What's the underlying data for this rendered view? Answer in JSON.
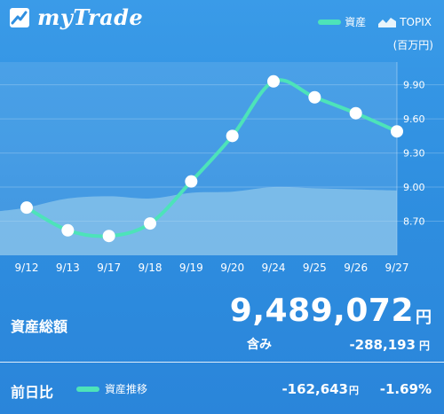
{
  "app": {
    "name": "myTrade"
  },
  "legend": {
    "series_label": "資産",
    "benchmark_label": "TOPIX"
  },
  "chart": {
    "unit_label": "(百万円)"
  },
  "colors": {
    "series_line": "#4de3b9",
    "benchmark_fill": "#a7d7ee",
    "background": "#2f8fe0"
  },
  "chart_data": {
    "type": "line",
    "categories": [
      "9/12",
      "9/13",
      "9/17",
      "9/18",
      "9/19",
      "9/20",
      "9/24",
      "9/25",
      "9/26",
      "9/27"
    ],
    "series": [
      {
        "name": "資産",
        "values": [
          8.82,
          8.62,
          8.57,
          8.68,
          9.05,
          9.45,
          9.93,
          9.79,
          9.65,
          9.49
        ]
      },
      {
        "name": "TOPIX",
        "type": "area",
        "values": [
          8.82,
          8.9,
          8.92,
          8.9,
          8.95,
          8.96,
          9.0,
          8.99,
          8.98,
          8.97
        ]
      }
    ],
    "yticks": [
      "8.70",
      "9.00",
      "9.30",
      "9.60",
      "9.90"
    ],
    "ylim": [
      8.4,
      10.1
    ],
    "grid": true
  },
  "summary": {
    "total_label": "資産総額",
    "total_value": "9,489,072",
    "total_unit": "円",
    "unrealized_label": "含み",
    "unrealized_value": "-288,193",
    "unrealized_unit": "円"
  },
  "daily": {
    "label": "前日比",
    "series_label": "資産推移",
    "change_value": "-162,643",
    "change_unit": "円",
    "change_pct": "-1.69%"
  }
}
